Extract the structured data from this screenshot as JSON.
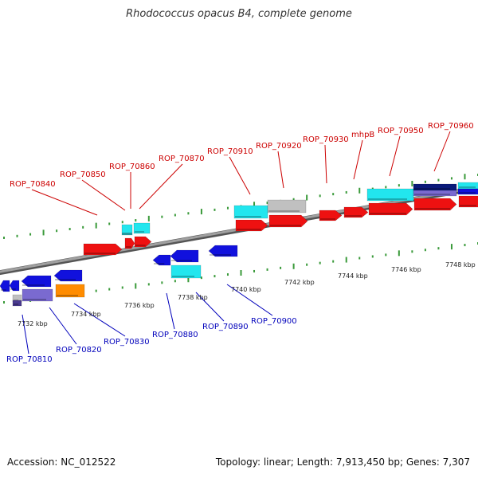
{
  "title": "Rhodococcus opacus B4, complete genome",
  "footer": {
    "accession": "Accession: NC_012522",
    "summary": "Topology: linear; Length: 7,913,450 bp; Genes: 7,307"
  },
  "colors": {
    "forward_label": "#cc0000",
    "reverse_label": "#0000bb",
    "backbone": "#8a8a8a",
    "dots": "#3a9a3a",
    "red_gene": "#ee1111",
    "blue_gene": "#1111dd",
    "cyan_gene": "#22e6ee",
    "grey_gene": "#c0c0c0",
    "purple_gene": "#7a6ad0",
    "navy_gene": "#0a1a7a",
    "orange_gene": "#ff8c00"
  },
  "forward_labels": [
    "ROP_70840",
    "ROP_70850",
    "ROP_70860",
    "ROP_70870",
    "ROP_70910",
    "ROP_70920",
    "ROP_70930",
    "mhpB",
    "ROP_70950",
    "ROP_70960"
  ],
  "reverse_labels": [
    "ROP_70810",
    "ROP_70820",
    "ROP_70830",
    "ROP_70880",
    "ROP_70890",
    "ROP_70900"
  ],
  "scale_ticks": [
    "7732 kbp",
    "7734 kbp",
    "7736 kbp",
    "7738 kbp",
    "7740 kbp",
    "7742 kbp",
    "7744 kbp",
    "7746 kbp",
    "7748 kbp"
  ]
}
